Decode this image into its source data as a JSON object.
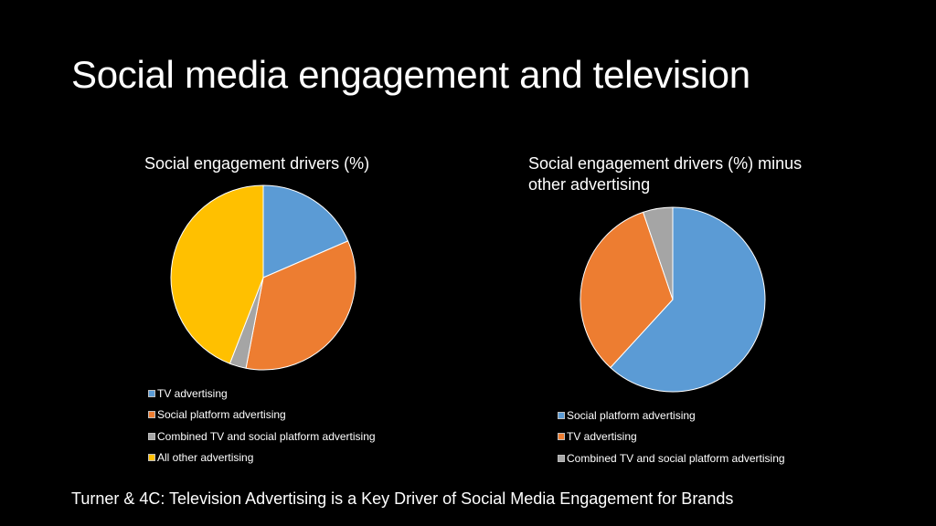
{
  "slide": {
    "title": "Social media engagement and television",
    "source": "Turner & 4C: Television Advertising is a Key Driver of Social Media Engagement for Brands"
  },
  "colors": {
    "background": "#000000",
    "text": "#ffffff",
    "slice_border": "#ffffff"
  },
  "chart_data": [
    {
      "type": "pie",
      "title": "Social engagement drivers (%)",
      "legend_position": "bottom",
      "start_angle": "12 o'clock, clockwise",
      "labels": [
        "TV advertising",
        "Social platform advertising",
        "Combined TV and social platform advertising",
        "All other advertising"
      ],
      "values": [
        18.5,
        34.5,
        2.9,
        44.1
      ],
      "colors": [
        "#5b9bd5",
        "#ed7d31",
        "#a5a5a5",
        "#ffc000"
      ]
    },
    {
      "type": "pie",
      "title": "Social engagement drivers (%) minus other advertising",
      "legend_position": "bottom",
      "start_angle": "12 o'clock, clockwise",
      "labels": [
        "Social platform advertising",
        "TV advertising",
        "Combined TV and social platform advertising"
      ],
      "values": [
        61.8,
        33.0,
        5.2
      ],
      "colors": [
        "#5b9bd5",
        "#ed7d31",
        "#a5a5a5"
      ]
    }
  ]
}
